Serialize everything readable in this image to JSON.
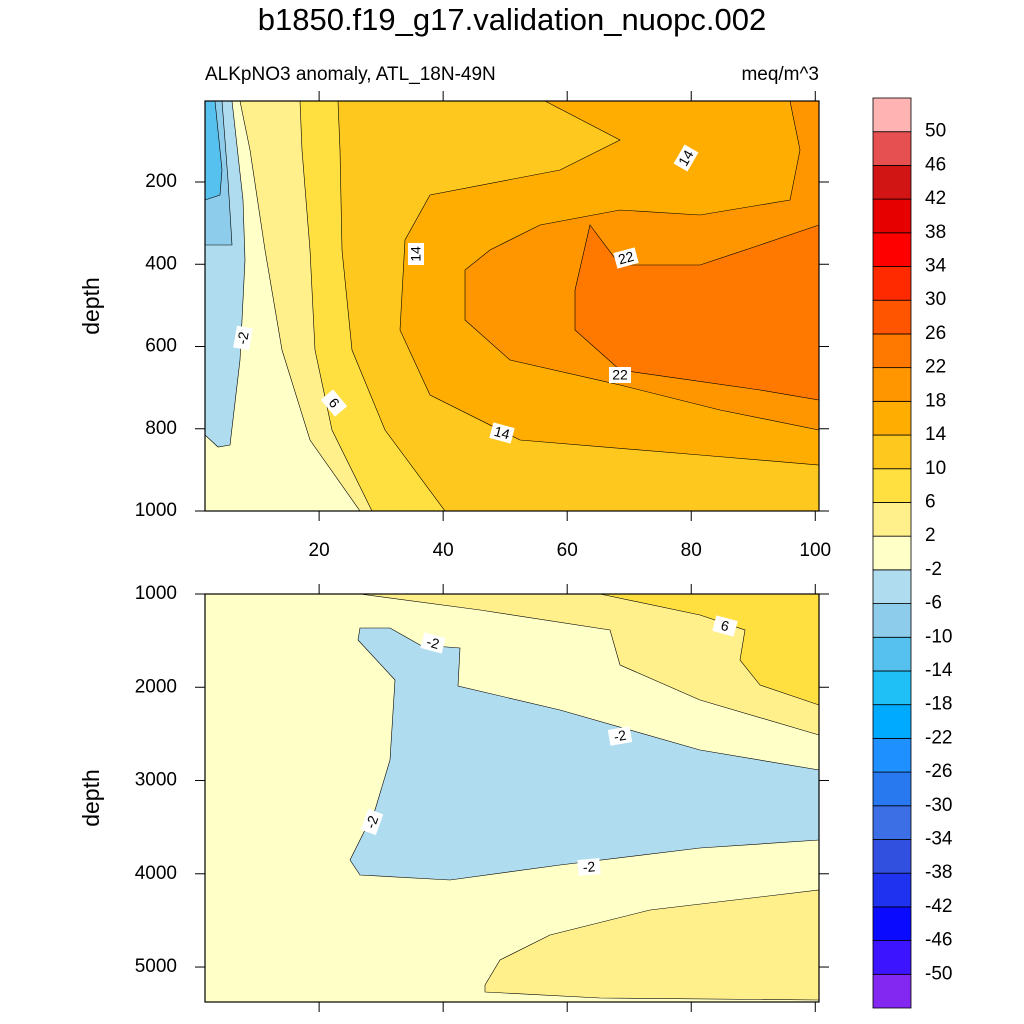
{
  "title": "b1850.f19_g17.validation_nuopc.002",
  "chart_data": [
    {
      "type": "contour",
      "subtitle_left": "ALKpNO3 anomaly, ATL_18N-49N",
      "subtitle_right": "meq/m^3",
      "ylabel": "depth",
      "xlim": [
        1.6,
        100.6
      ],
      "xticks": [
        20,
        40,
        60,
        80,
        100
      ],
      "xtick_labels": true,
      "ylim": [
        3,
        1000
      ],
      "yticks": [
        200,
        400,
        600,
        800,
        1000
      ],
      "y_reversed": true,
      "contour_labels": [
        14,
        14,
        22,
        -2,
        6,
        22,
        14
      ]
    },
    {
      "type": "contour",
      "ylabel": "depth",
      "xlim": [
        1.6,
        100.6
      ],
      "xticks": [
        20,
        40,
        60,
        80,
        100
      ],
      "xtick_labels": false,
      "ylim": [
        1000,
        5375
      ],
      "yticks": [
        1000,
        2000,
        3000,
        4000,
        5000
      ],
      "y_reversed": true,
      "contour_labels": [
        -2,
        6,
        -2,
        -2,
        -2
      ]
    }
  ],
  "colorbar": {
    "levels": [
      -50,
      -46,
      -42,
      -38,
      -34,
      -30,
      -26,
      -22,
      -18,
      -14,
      -10,
      -6,
      -2,
      2,
      6,
      10,
      14,
      18,
      22,
      26,
      30,
      34,
      38,
      42,
      46,
      50
    ],
    "colors": [
      "#8228f0",
      "#3c14ff",
      "#0a0aff",
      "#1e32f0",
      "#3250e0",
      "#3c6ee6",
      "#2878f0",
      "#1e90ff",
      "#00aaff",
      "#1ec0f5",
      "#56c0ee",
      "#8dcdeb",
      "#b0dcf0",
      "#ffffc8",
      "#fff08c",
      "#ffe040",
      "#ffc81e",
      "#ffad00",
      "#ff9600",
      "#ff7800",
      "#ff5500",
      "#ff2a00",
      "#ff0000",
      "#e60000",
      "#d11515",
      "#e65050",
      "#ffb3b3"
    ]
  }
}
